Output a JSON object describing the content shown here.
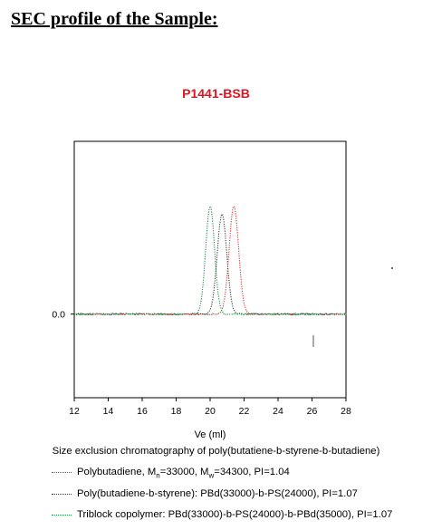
{
  "document": {
    "heading": "SEC profile of the Sample:",
    "caption": "Size exclusion chromatography of poly(butatiene-b-styrene-b-butadiene)"
  },
  "legend": [
    {
      "label": "Polybutadiene, Mn=33000, Mw=34300, PI=1.04",
      "label_parts": {
        "a": "Polybutadiene, M",
        "a_sub": "n",
        "b": "=33000, M",
        "b_sub": "w",
        "c": "=34300, PI=1.04"
      },
      "color": "#d23a2e"
    },
    {
      "label": "Poly(butadiene-b-styrene): PBd(33000)-b-PS(24000), PI=1.07",
      "color": "#3a3a3a"
    },
    {
      "label": "Triblock copolymer: PBd(33000)-b-PS(24000)-b-PBd(35000), PI=1.07",
      "color": "#2e8a4e"
    }
  ],
  "chart_data": {
    "type": "line",
    "title": "P1441-BSB",
    "xlabel": "Ve (ml)",
    "ylabel": "",
    "xlim": [
      12,
      28
    ],
    "ylim": [
      -0.75,
      1.55
    ],
    "x_ticks": [
      12,
      14,
      16,
      18,
      20,
      22,
      24,
      26,
      28
    ],
    "y_ticks": [
      {
        "value": 0,
        "label": "0.0"
      }
    ],
    "grid": false,
    "series": [
      {
        "name": "Polybutadiene, Mn=33000, Mw=34300, PI=1.04",
        "color": "#d23a2e",
        "peak_x": 21.4,
        "peak_height": 0.97,
        "width": 0.28,
        "x": [
          12,
          19.5,
          20.3,
          20.7,
          21.0,
          21.2,
          21.4,
          21.6,
          21.8,
          22.1,
          22.5,
          23.3,
          28
        ],
        "y": [
          0,
          0,
          0.02,
          0.12,
          0.45,
          0.82,
          0.97,
          0.82,
          0.45,
          0.12,
          0.02,
          0,
          0
        ]
      },
      {
        "name": "Poly(butadiene-b-styrene): PBd(33000)-b-PS(24000), PI=1.07",
        "color": "#3a3a3a",
        "peak_x": 20.7,
        "peak_height": 0.9,
        "width": 0.28,
        "x": [
          12,
          18.8,
          19.6,
          20.0,
          20.3,
          20.5,
          20.7,
          20.9,
          21.1,
          21.4,
          21.8,
          22.6,
          28
        ],
        "y": [
          0,
          0,
          0.02,
          0.11,
          0.42,
          0.76,
          0.9,
          0.76,
          0.42,
          0.11,
          0.02,
          0,
          0
        ]
      },
      {
        "name": "Triblock copolymer: PBd(33000)-b-PS(24000)-b-PBd(35000), PI=1.07",
        "color": "#2e8a4e",
        "peak_x": 20.0,
        "peak_height": 0.97,
        "width": 0.26,
        "x": [
          12,
          18.2,
          18.9,
          19.3,
          19.6,
          19.8,
          20.0,
          20.2,
          20.4,
          20.7,
          21.1,
          21.8,
          28
        ],
        "y": [
          0,
          0,
          0.02,
          0.12,
          0.45,
          0.82,
          0.97,
          0.82,
          0.45,
          0.12,
          0.02,
          0,
          0
        ]
      }
    ]
  }
}
